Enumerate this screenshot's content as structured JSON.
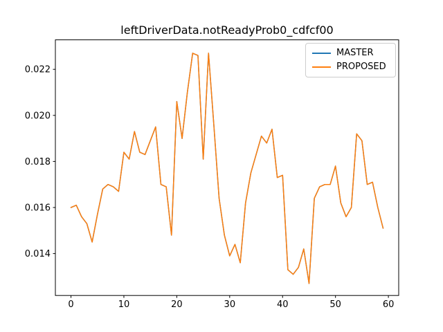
{
  "title": "leftDriverData.notReadyProb0_cdfcf00",
  "legend": {
    "position": "upper-right",
    "entries": [
      {
        "label": "MASTER",
        "color": "#1f77b4"
      },
      {
        "label": "PROPOSED",
        "color": "#ff7f0e"
      }
    ]
  },
  "chart_data": {
    "type": "line",
    "title": "leftDriverData.notReadyProb0_cdfcf00",
    "xlabel": "",
    "ylabel": "",
    "grid": false,
    "legend_position": "upper-right",
    "note": "MASTER and PROPOSED series overlap exactly; orange PROPOSED line is drawn on top of blue MASTER line",
    "x": [
      0,
      1,
      2,
      3,
      4,
      5,
      6,
      7,
      8,
      9,
      10,
      11,
      12,
      13,
      14,
      15,
      16,
      17,
      18,
      19,
      20,
      21,
      22,
      23,
      24,
      25,
      26,
      27,
      28,
      29,
      30,
      31,
      32,
      33,
      34,
      35,
      36,
      37,
      38,
      39,
      40,
      41,
      42,
      43,
      44,
      45,
      46,
      47,
      48,
      49,
      50,
      51,
      52,
      53,
      54,
      55,
      56,
      57,
      58,
      59
    ],
    "series": [
      {
        "name": "MASTER",
        "color": "#1f77b4",
        "values": [
          0.016,
          0.0161,
          0.0156,
          0.0153,
          0.0145,
          0.0157,
          0.0168,
          0.017,
          0.0169,
          0.0167,
          0.0184,
          0.0181,
          0.0193,
          0.0184,
          0.0183,
          0.0189,
          0.0195,
          0.017,
          0.0169,
          0.0148,
          0.0206,
          0.019,
          0.021,
          0.0227,
          0.0226,
          0.0181,
          0.0227,
          0.0196,
          0.0164,
          0.0148,
          0.0139,
          0.0144,
          0.0136,
          0.0162,
          0.0175,
          0.0183,
          0.0191,
          0.0188,
          0.0194,
          0.0173,
          0.0174,
          0.0133,
          0.0131,
          0.0134,
          0.0142,
          0.0127,
          0.0164,
          0.0169,
          0.017,
          0.017,
          0.0178,
          0.0162,
          0.0156,
          0.016,
          0.0192,
          0.0189,
          0.017,
          0.0171,
          0.016,
          0.0151
        ]
      },
      {
        "name": "PROPOSED",
        "color": "#ff7f0e",
        "values": [
          0.016,
          0.0161,
          0.0156,
          0.0153,
          0.0145,
          0.0157,
          0.0168,
          0.017,
          0.0169,
          0.0167,
          0.0184,
          0.0181,
          0.0193,
          0.0184,
          0.0183,
          0.0189,
          0.0195,
          0.017,
          0.0169,
          0.0148,
          0.0206,
          0.019,
          0.021,
          0.0227,
          0.0226,
          0.0181,
          0.0227,
          0.0196,
          0.0164,
          0.0148,
          0.0139,
          0.0144,
          0.0136,
          0.0162,
          0.0175,
          0.0183,
          0.0191,
          0.0188,
          0.0194,
          0.0173,
          0.0174,
          0.0133,
          0.0131,
          0.0134,
          0.0142,
          0.0127,
          0.0164,
          0.0169,
          0.017,
          0.017,
          0.0178,
          0.0162,
          0.0156,
          0.016,
          0.0192,
          0.0189,
          0.017,
          0.0171,
          0.016,
          0.0151
        ]
      }
    ],
    "xticks": [
      0,
      10,
      20,
      30,
      40,
      50,
      60
    ],
    "xtick_labels": [
      "0",
      "10",
      "20",
      "30",
      "40",
      "50",
      "60"
    ],
    "yticks": [
      0.014,
      0.016,
      0.018,
      0.02,
      0.022
    ],
    "ytick_labels": [
      "0.014",
      "0.016",
      "0.018",
      "0.020",
      "0.022"
    ],
    "xlim": [
      -2.95,
      61.95
    ],
    "ylim": [
      0.01218,
      0.02328
    ]
  }
}
